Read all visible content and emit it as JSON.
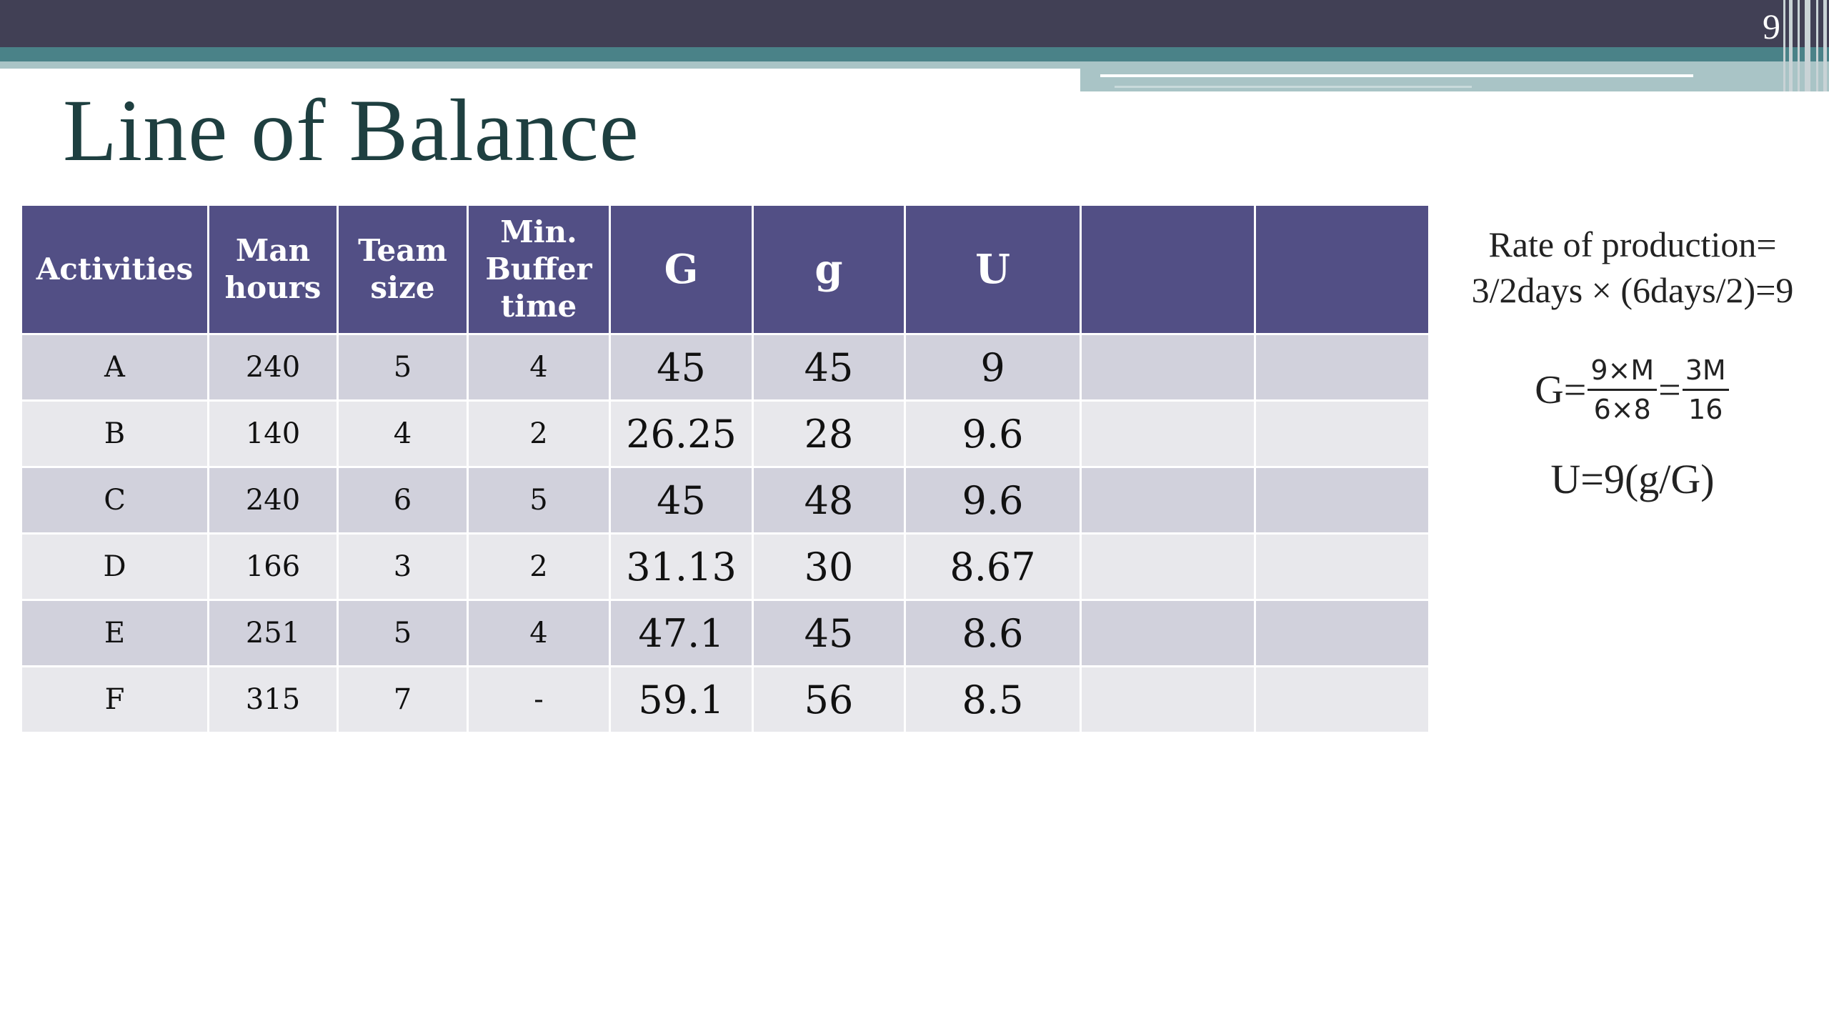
{
  "slide": {
    "page_number": "9",
    "title": "Line of Balance"
  },
  "table": {
    "headers": [
      [
        "Activities"
      ],
      [
        "Man",
        "hours"
      ],
      [
        "Team",
        "size"
      ],
      [
        "Min.",
        "Buffer",
        "time"
      ],
      [
        "G"
      ],
      [
        "g"
      ],
      [
        "U"
      ],
      [
        ""
      ],
      [
        ""
      ]
    ],
    "rows": [
      [
        "A",
        "240",
        "5",
        "4",
        "45",
        "45",
        "9",
        "",
        ""
      ],
      [
        "B",
        "140",
        "4",
        "2",
        "26.25",
        "28",
        "9.6",
        "",
        ""
      ],
      [
        "C",
        "240",
        "6",
        "5",
        "45",
        "48",
        "9.6",
        "",
        ""
      ],
      [
        "D",
        "166",
        "3",
        "2",
        "31.13",
        "30",
        "8.67",
        "",
        ""
      ],
      [
        "E",
        "251",
        "5",
        "4",
        "47.1",
        "45",
        "8.6",
        "",
        ""
      ],
      [
        "F",
        "315",
        "7",
        "-",
        "59.1",
        "56",
        "8.5",
        "",
        ""
      ]
    ]
  },
  "notes": {
    "rate_line1": "Rate of production=",
    "rate_line2": "3/2days × (6days/2)=9",
    "g_prefix": "G=",
    "g_frac1_num": "9×M",
    "g_frac1_den": "6×8",
    "g_equals": "=",
    "g_frac2_num": "3M",
    "g_frac2_den": "16",
    "u_formula": "U=9(g/G)"
  },
  "colors": {
    "header_bg": "#524f85",
    "row_odd": "#d1d1dc",
    "row_even": "#e8e8ec",
    "title": "#1e3f40",
    "top_bar": "#414055",
    "accent_teal": "#4a8288"
  }
}
